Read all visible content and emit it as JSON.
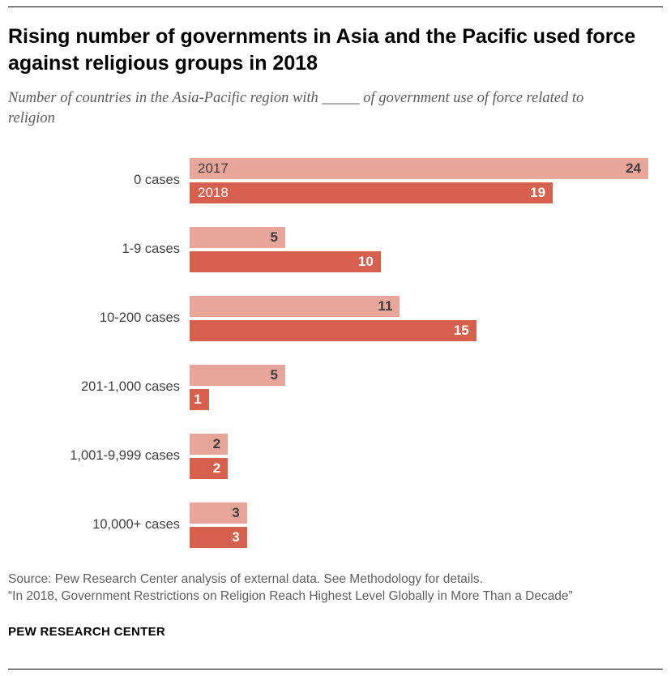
{
  "header": {
    "title": "Rising number of governments in Asia and the Pacific used force against religious groups in 2018",
    "subtitle": "Number of countries in the Asia-Pacific region with _____ of government use of force related to religion"
  },
  "chart_data": {
    "type": "bar",
    "orientation": "horizontal",
    "title": "Rising number of governments in Asia and the Pacific used force against religious groups in 2018",
    "subtitle": "Number of countries in the Asia-Pacific region with _____ of government use of force related to religion",
    "categories": [
      "0 cases",
      "1-9 cases",
      "10-200 cases",
      "201-1,000 cases",
      "1,001-9,999 cases",
      "10,000+ cases"
    ],
    "series": [
      {
        "name": "2017",
        "color": "#e8a69a",
        "label_color": "dark",
        "values": [
          24,
          5,
          11,
          5,
          2,
          3
        ]
      },
      {
        "name": "2018",
        "color": "#d6604d",
        "label_color": "white",
        "values": [
          19,
          10,
          15,
          1,
          2,
          3
        ]
      }
    ],
    "xmax": 24,
    "value_labels_inside": true,
    "legend_position": "inside-first-bars",
    "grid": false
  },
  "footer": {
    "source": "Source: Pew Research Center analysis of external data. See Methodology for details.",
    "report": "“In 2018, Government Restrictions on Religion Reach Highest Level Globally in More Than a Decade”",
    "brand": "PEW RESEARCH CENTER"
  }
}
